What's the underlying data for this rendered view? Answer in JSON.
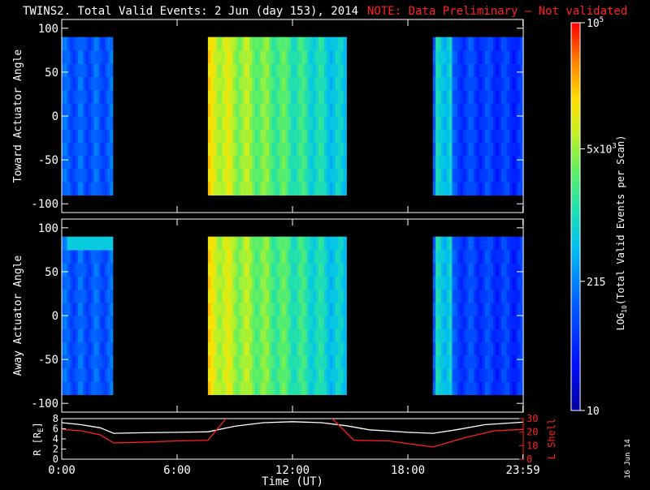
{
  "header": {
    "title": "TWINS2. Total Valid Events:  2 Jun (day 153), 2014",
    "note": "NOTE: Data Preliminary – Not validated",
    "note_color": "#ff2020"
  },
  "footer": {
    "stamp": "16 Jun 14"
  },
  "chart_data": [
    {
      "type": "heatmap",
      "ylabel": "Toward Actuator Angle",
      "ylim": [
        -110,
        110
      ],
      "yticks": [
        100,
        50,
        0,
        -50,
        -100
      ],
      "xlim": [
        0,
        24
      ],
      "angle_range": [
        -90,
        90
      ],
      "data_segments": [
        [
          0.0,
          2.65
        ],
        [
          7.6,
          14.8
        ],
        [
          19.3,
          24.0
        ]
      ],
      "coverage_note": "no data 2.65-7.6 and 14.8-19.3 UT",
      "hotspot": null
    },
    {
      "type": "heatmap",
      "ylabel": "Away Actuator Angle",
      "ylim": [
        -110,
        110
      ],
      "yticks": [
        100,
        50,
        0,
        -50,
        -100
      ],
      "xlim": [
        0,
        24
      ],
      "angle_range": [
        -90,
        90
      ],
      "data_segments": [
        [
          0.0,
          2.65
        ],
        [
          7.6,
          14.8
        ],
        [
          19.3,
          24.0
        ]
      ],
      "hotspot": {
        "x": [
          0.3,
          2.65
        ],
        "angle": [
          72,
          90
        ]
      }
    },
    {
      "type": "line",
      "xlabel": "Time (UT)",
      "xticks": [
        "0:00",
        "6:00",
        "12:00",
        "18:00",
        "23:59"
      ],
      "xtick_values": [
        0,
        6,
        12,
        18,
        23.983
      ],
      "xlim": [
        0,
        24
      ],
      "ylabel_left": "R [R",
      "ylabel_left_sub": "E",
      "ylabel_left_close": "]",
      "ylim_left": [
        0,
        8
      ],
      "yticks_left": [
        0,
        2,
        4,
        6,
        8
      ],
      "ylabel_right": "L Shell",
      "ylim_right": [
        0,
        30
      ],
      "yticks_right": [
        0,
        10,
        20,
        30
      ],
      "series": [
        {
          "name": "R",
          "axis": "left",
          "color": "#ffffff",
          "x": [
            0,
            1,
            2,
            2.7,
            4,
            6,
            7.6,
            9,
            10.5,
            12,
            13.5,
            14.8,
            16,
            18,
            19.3,
            20.5,
            22,
            23.98
          ],
          "y": [
            7.2,
            6.8,
            6.2,
            5.1,
            5.2,
            5.3,
            5.4,
            6.5,
            7.2,
            7.4,
            7.2,
            6.6,
            5.8,
            5.3,
            5.1,
            5.8,
            6.8,
            7.3
          ]
        },
        {
          "name": "L Shell",
          "axis": "right",
          "color": "#ff2020",
          "x": [
            0,
            1,
            2,
            2.7,
            4,
            6,
            7.6,
            8.6,
            14.0,
            15.2,
            17,
            19.3,
            21,
            22.5,
            23.98
          ],
          "y": [
            22,
            21,
            18,
            12,
            12.5,
            13.5,
            14,
            31,
            31,
            14,
            13.5,
            9,
            16,
            21,
            22
          ]
        }
      ]
    }
  ],
  "colorbar": {
    "label": "LOG",
    "label_sub": "10",
    "label_rest": "(Total Valid Events per Scan)",
    "scale": "log",
    "range": [
      10,
      100000
    ],
    "ticks": [
      {
        "value": 100000,
        "base": "10",
        "sup": "5",
        "sub": ""
      },
      {
        "value": 5000,
        "base": "5x10",
        "sup": "3",
        "sub": ""
      },
      {
        "value": 215,
        "base": "215",
        "sup": "",
        "sub": ""
      },
      {
        "value": 10,
        "base": "10",
        "sup": "",
        "sub": ""
      }
    ]
  }
}
